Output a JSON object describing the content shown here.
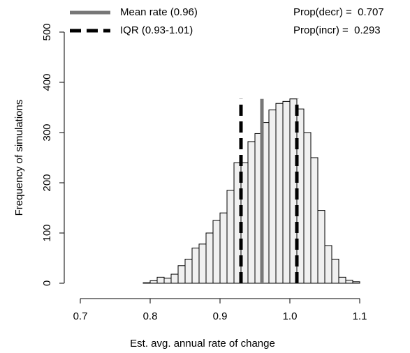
{
  "chart_data": {
    "type": "histogram",
    "xlabel": "Est. avg. annual rate of change",
    "ylabel": "Frequency of simulations",
    "bins": [
      0.75,
      0.76,
      0.77,
      0.78,
      0.79,
      0.8,
      0.81,
      0.82,
      0.83,
      0.84,
      0.85,
      0.86,
      0.87,
      0.88,
      0.89,
      0.9,
      0.91,
      0.92,
      0.93,
      0.94,
      0.95,
      0.96,
      0.97,
      0.98,
      0.99,
      1.0,
      1.01,
      1.02,
      1.03,
      1.04,
      1.05,
      1.06,
      1.07,
      1.08,
      1.09,
      1.1
    ],
    "counts": [
      0,
      0,
      0,
      0,
      1,
      5,
      12,
      10,
      18,
      35,
      48,
      70,
      78,
      100,
      125,
      140,
      185,
      240,
      240,
      282,
      298,
      320,
      345,
      358,
      362,
      367,
      347,
      300,
      250,
      145,
      75,
      48,
      12,
      6,
      3
    ],
    "color": "#f0f0f0",
    "xlim": [
      0.7,
      1.1
    ],
    "xticks": [
      0.7,
      0.8,
      0.9,
      {
        "value": 1,
        "label": "1.0"
      },
      1.1
    ],
    "ylim": [
      0,
      500
    ],
    "yticks": [
      0,
      100,
      200,
      300,
      400,
      500
    ],
    "reference_lines": [
      {
        "name": "Mean rate (0.96)",
        "values": [
          0.96
        ],
        "color": "#777777",
        "dashed": false
      },
      {
        "name": "IQR (0.93-1.01)",
        "values": [
          0.93,
          1.01
        ],
        "color": "#000000",
        "dashed": true
      }
    ],
    "annotations": [
      "Prop(decr) =  0.707",
      "Prop(incr) =  0.293"
    ]
  }
}
